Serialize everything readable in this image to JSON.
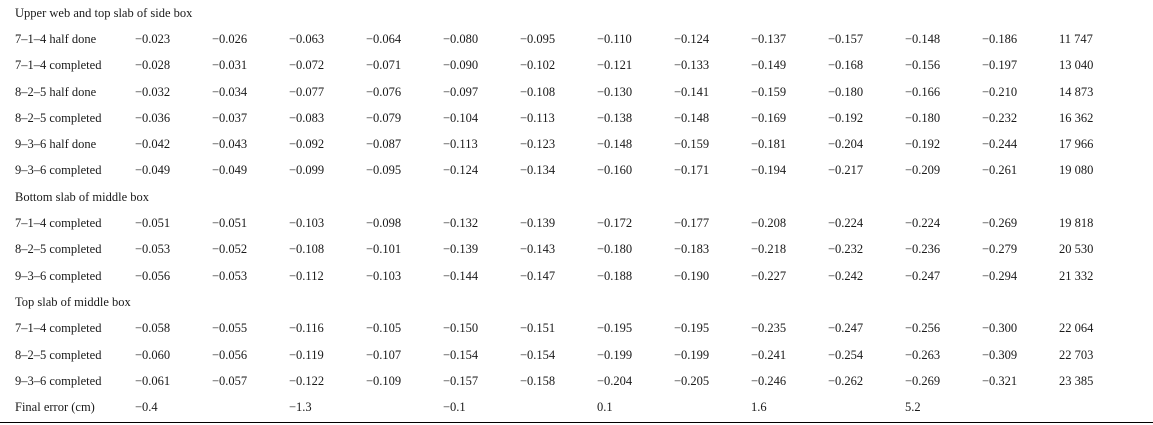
{
  "sections": [
    {
      "title": "Upper web and top slab of side box",
      "rows": [
        {
          "label": "7–1–4 half done",
          "values": [
            "−0.023",
            "−0.026",
            "−0.063",
            "−0.064",
            "−0.080",
            "−0.095",
            "−0.110",
            "−0.124",
            "−0.137",
            "−0.157",
            "−0.148",
            "−0.186",
            "11 747"
          ]
        },
        {
          "label": "7–1–4 completed",
          "values": [
            "−0.028",
            "−0.031",
            "−0.072",
            "−0.071",
            "−0.090",
            "−0.102",
            "−0.121",
            "−0.133",
            "−0.149",
            "−0.168",
            "−0.156",
            "−0.197",
            "13 040"
          ]
        },
        {
          "label": "8–2–5 half done",
          "values": [
            "−0.032",
            "−0.034",
            "−0.077",
            "−0.076",
            "−0.097",
            "−0.108",
            "−0.130",
            "−0.141",
            "−0.159",
            "−0.180",
            "−0.166",
            "−0.210",
            "14 873"
          ]
        },
        {
          "label": "8–2–5 completed",
          "values": [
            "−0.036",
            "−0.037",
            "−0.083",
            "−0.079",
            "−0.104",
            "−0.113",
            "−0.138",
            "−0.148",
            "−0.169",
            "−0.192",
            "−0.180",
            "−0.232",
            "16 362"
          ]
        },
        {
          "label": "9–3–6 half done",
          "values": [
            "−0.042",
            "−0.043",
            "−0.092",
            "−0.087",
            "−0.113",
            "−0.123",
            "−0.148",
            "−0.159",
            "−0.181",
            "−0.204",
            "−0.192",
            "−0.244",
            "17 966"
          ]
        },
        {
          "label": "9–3–6 completed",
          "values": [
            "−0.049",
            "−0.049",
            "−0.099",
            "−0.095",
            "−0.124",
            "−0.134",
            "−0.160",
            "−0.171",
            "−0.194",
            "−0.217",
            "−0.209",
            "−0.261",
            "19 080"
          ]
        }
      ]
    },
    {
      "title": "Bottom slab of middle box",
      "rows": [
        {
          "label": "7–1–4 completed",
          "values": [
            "−0.051",
            "−0.051",
            "−0.103",
            "−0.098",
            "−0.132",
            "−0.139",
            "−0.172",
            "−0.177",
            "−0.208",
            "−0.224",
            "−0.224",
            "−0.269",
            "19 818"
          ]
        },
        {
          "label": "8–2–5 completed",
          "values": [
            "−0.053",
            "−0.052",
            "−0.108",
            "−0.101",
            "−0.139",
            "−0.143",
            "−0.180",
            "−0.183",
            "−0.218",
            "−0.232",
            "−0.236",
            "−0.279",
            "20 530"
          ]
        },
        {
          "label": "9–3–6 completed",
          "values": [
            "−0.056",
            "−0.053",
            "−0.112",
            "−0.103",
            "−0.144",
            "−0.147",
            "−0.188",
            "−0.190",
            "−0.227",
            "−0.242",
            "−0.247",
            "−0.294",
            "21 332"
          ]
        }
      ]
    },
    {
      "title": "Top slab of middle box",
      "rows": [
        {
          "label": "7–1–4 completed",
          "values": [
            "−0.058",
            "−0.055",
            "−0.116",
            "−0.105",
            "−0.150",
            "−0.151",
            "−0.195",
            "−0.195",
            "−0.235",
            "−0.247",
            "−0.256",
            "−0.300",
            "22 064"
          ]
        },
        {
          "label": "8–2–5 completed",
          "values": [
            "−0.060",
            "−0.056",
            "−0.119",
            "−0.107",
            "−0.154",
            "−0.154",
            "−0.199",
            "−0.199",
            "−0.241",
            "−0.254",
            "−0.263",
            "−0.309",
            "22 703"
          ]
        },
        {
          "label": "9–3–6 completed",
          "values": [
            "−0.061",
            "−0.057",
            "−0.122",
            "−0.109",
            "−0.157",
            "−0.158",
            "−0.204",
            "−0.205",
            "−0.246",
            "−0.262",
            "−0.269",
            "−0.321",
            "23 385"
          ]
        }
      ]
    }
  ],
  "final_row": {
    "label": "Final error (cm)",
    "values": [
      "−0.4",
      "",
      "−1.3",
      "",
      "−0.1",
      "",
      "0.1",
      "",
      "1.6",
      "",
      "5.2",
      "",
      ""
    ]
  }
}
